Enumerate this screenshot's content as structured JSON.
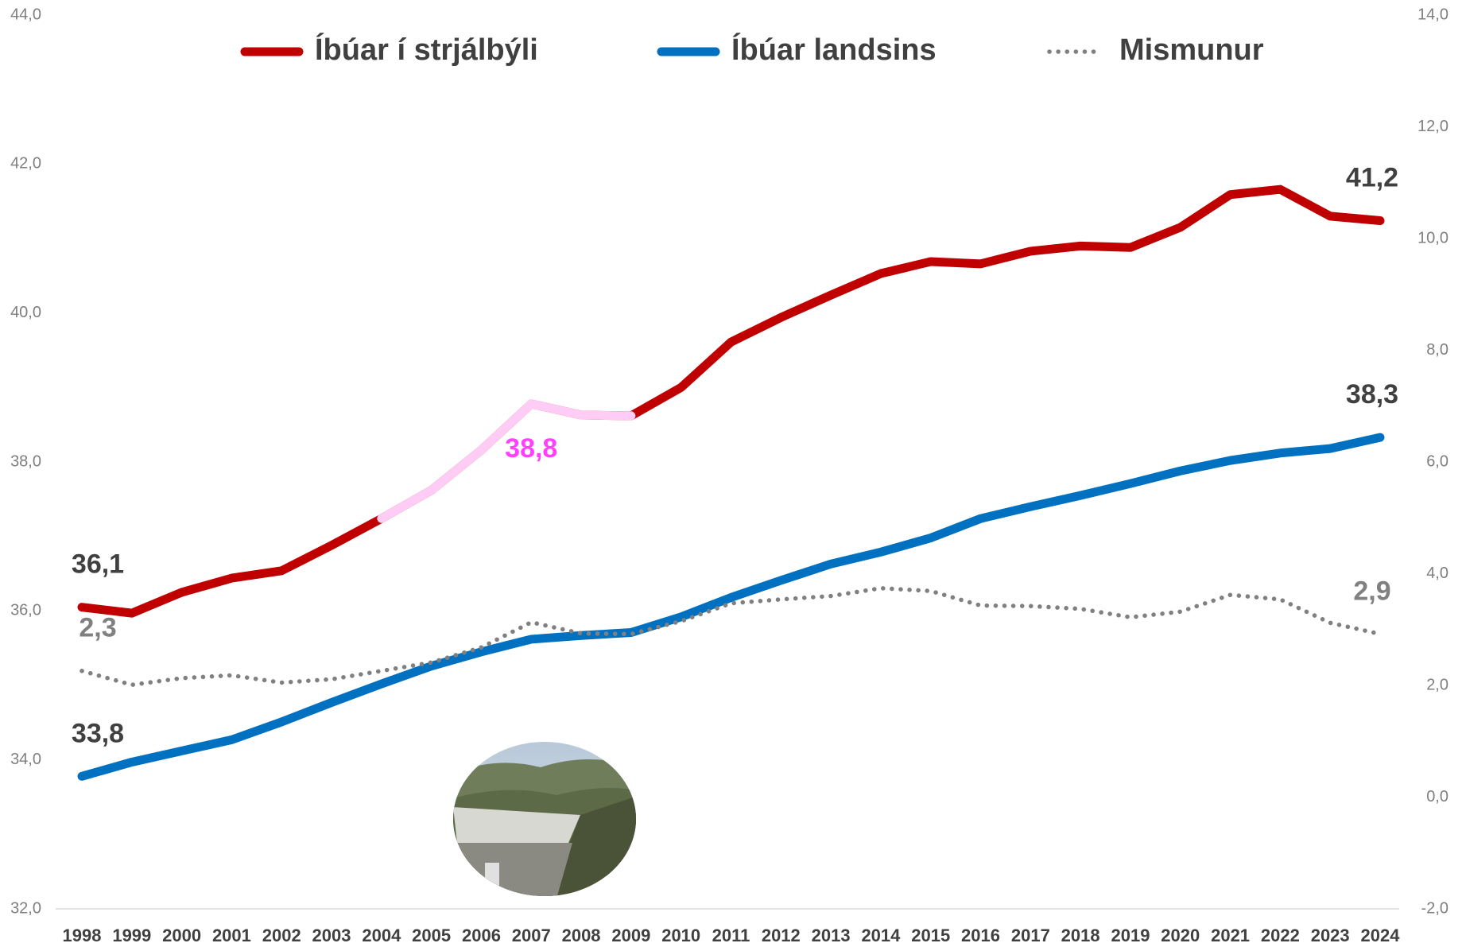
{
  "chart_data": {
    "type": "line",
    "categories": [
      "1998",
      "1999",
      "2000",
      "2001",
      "2002",
      "2003",
      "2004",
      "2005",
      "2006",
      "2007",
      "2008",
      "2009",
      "2010",
      "2011",
      "2012",
      "2013",
      "2014",
      "2015",
      "2016",
      "2017",
      "2018",
      "2019",
      "2020",
      "2021",
      "2022",
      "2023",
      "2024"
    ],
    "series": [
      {
        "name": "Íbúar í strjálbýli",
        "color": "#c00000",
        "style": "solid",
        "values": [
          36.05,
          35.97,
          36.25,
          36.44,
          36.54,
          36.88,
          37.24,
          37.62,
          38.16,
          38.78,
          38.63,
          38.62,
          39.0,
          39.61,
          39.94,
          40.24,
          40.53,
          40.69,
          40.66,
          40.83,
          40.9,
          40.88,
          41.15,
          41.59,
          41.66,
          41.3,
          41.24
        ],
        "value_labels": [
          "36,1",
          null,
          null,
          null,
          null,
          null,
          null,
          null,
          null,
          "38,8",
          null,
          null,
          null,
          null,
          null,
          null,
          null,
          null,
          null,
          null,
          null,
          null,
          null,
          null,
          null,
          null,
          "41,2"
        ],
        "highlight_from": "2004",
        "highlight_to": "2009",
        "highlight_color": "#ffccf5",
        "highlight_label_color": "#ff40ff"
      },
      {
        "name": "Íbúar landsins",
        "color": "#0070c0",
        "style": "solid",
        "values": [
          33.78,
          33.97,
          34.12,
          34.27,
          34.51,
          34.77,
          35.02,
          35.26,
          35.45,
          35.62,
          35.67,
          35.71,
          35.92,
          36.18,
          36.41,
          36.63,
          36.79,
          36.98,
          37.24,
          37.4,
          37.55,
          37.71,
          37.88,
          38.02,
          38.12,
          38.18,
          38.33
        ],
        "value_labels": [
          "33,8",
          null,
          null,
          null,
          null,
          null,
          null,
          null,
          null,
          null,
          null,
          null,
          null,
          null,
          null,
          null,
          null,
          null,
          null,
          null,
          null,
          null,
          null,
          null,
          null,
          null,
          "38,3"
        ]
      },
      {
        "name": "Mismunur",
        "color": "#808080",
        "style": "dotted",
        "axis": "y2",
        "values": [
          2.26,
          2.01,
          2.13,
          2.18,
          2.05,
          2.11,
          2.26,
          2.41,
          2.68,
          3.13,
          2.93,
          2.92,
          3.15,
          3.47,
          3.54,
          3.6,
          3.74,
          3.69,
          3.43,
          3.42,
          3.37,
          3.22,
          3.32,
          3.62,
          3.54,
          3.12,
          2.92
        ],
        "value_labels": [
          "2,3",
          null,
          null,
          null,
          null,
          null,
          null,
          null,
          null,
          null,
          null,
          null,
          null,
          null,
          null,
          null,
          null,
          null,
          null,
          null,
          null,
          null,
          null,
          null,
          null,
          null,
          "2,9"
        ]
      }
    ],
    "ylim": [
      32,
      44
    ],
    "yticks": [
      {
        "value": 32,
        "label": "32,0"
      },
      {
        "value": 34,
        "label": "34,0"
      },
      {
        "value": 36,
        "label": "36,0"
      },
      {
        "value": 38,
        "label": "38,0"
      },
      {
        "value": 40,
        "label": "40,0"
      },
      {
        "value": 42,
        "label": "42,0"
      },
      {
        "value": 44,
        "label": "44,0"
      }
    ],
    "y2lim": [
      -2,
      14
    ],
    "y2ticks": [
      {
        "value": -2,
        "label": "-2,0"
      },
      {
        "value": 0,
        "label": "0,0"
      },
      {
        "value": 2,
        "label": "2,0"
      },
      {
        "value": 4,
        "label": "4,0"
      },
      {
        "value": 6,
        "label": "6,0"
      },
      {
        "value": 8,
        "label": "8,0"
      },
      {
        "value": 10,
        "label": "10,0"
      },
      {
        "value": 12,
        "label": "12,0"
      },
      {
        "value": 14,
        "label": "14,0"
      }
    ],
    "grid": false,
    "legend": "top"
  }
}
